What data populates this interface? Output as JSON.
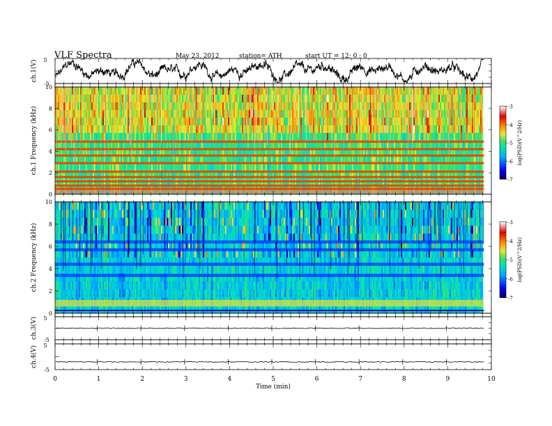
{
  "header": {
    "title": "VLF Spectra",
    "date": "May 23, 2012",
    "station": "station= ATH",
    "start": "start UT = 12: 0 : 0"
  },
  "chart_data": [
    {
      "type": "line",
      "panel": "ch1-waveform",
      "ylabel": "ch.1(V)",
      "ylim": [
        -5,
        5
      ],
      "yticks": [
        "5",
        "-5"
      ],
      "xlim": [
        0,
        10
      ],
      "data_end_min": 9.83,
      "series": [
        {
          "values": "dense waveform, amplitude roughly -4.5 to 4.5 V"
        }
      ]
    },
    {
      "type": "heatmap",
      "panel": "ch1-spectrogram",
      "ylabel": "ch.1 Frequency (kHz)",
      "ylim": [
        0,
        10
      ],
      "yticks": [
        "0",
        "2",
        "4",
        "6",
        "8",
        "10"
      ],
      "xlim": [
        0,
        10
      ],
      "colorbar": {
        "label": "log(PSD)(V^2/Hz)",
        "range": [
          -7,
          -3
        ],
        "ticks": [
          "-3",
          "-4",
          "-5",
          "-6",
          "-7"
        ]
      },
      "description_values": {
        "background_log_psd": -5,
        "strong_bands_khz": [
          4.9,
          4.2,
          3.6,
          2.9,
          2.1,
          1.6,
          1.2,
          0.8,
          0.5
        ],
        "strong_band_log_psd": -3.8
      }
    },
    {
      "type": "heatmap",
      "panel": "ch2-spectrogram",
      "ylabel": "ch.2 Frequency (kHz)",
      "ylim": [
        0,
        10
      ],
      "yticks": [
        "0",
        "2",
        "4",
        "6",
        "8",
        "10"
      ],
      "xlim": [
        0,
        10
      ],
      "colorbar": {
        "label": "log(PSD)(V^2/Hz)",
        "range": [
          -7,
          -3
        ],
        "ticks": [
          "-3",
          "-4",
          "-5",
          "-6",
          "-7"
        ]
      },
      "description_values": {
        "background_log_psd": -5.5,
        "weak_bands_khz": [
          6.4,
          5.7,
          4.4,
          3.4
        ],
        "weak_band_log_psd": -6.3,
        "low_freq_band_khz": [
          0.6,
          1.2
        ],
        "low_freq_log_psd": -4.5
      }
    },
    {
      "type": "line",
      "panel": "ch3-waveform",
      "ylabel": "ch.3(V)",
      "ylim": [
        -5,
        5
      ],
      "yticks": [
        "5",
        "-5"
      ],
      "xlim": [
        0,
        10
      ],
      "series": [
        {
          "values": "flat, approx 0 V"
        }
      ]
    },
    {
      "type": "line",
      "panel": "ch4-waveform",
      "ylabel": "ch.4(V)",
      "ylim": [
        -5,
        5
      ],
      "yticks": [
        "5",
        "-5"
      ],
      "xlim": [
        0,
        10
      ],
      "series": [
        {
          "values": "flat, approx -2 V"
        }
      ]
    }
  ],
  "x_axis": {
    "label": "Time (min)",
    "ticks": [
      "0",
      "1",
      "2",
      "3",
      "4",
      "5",
      "6",
      "7",
      "8",
      "9",
      "10"
    ]
  },
  "colors": {
    "colormap": [
      "#000060",
      "#0000ff",
      "#00aaff",
      "#00e0c0",
      "#40e060",
      "#e8e830",
      "#ff8000",
      "#e00000",
      "#ffffff"
    ]
  }
}
